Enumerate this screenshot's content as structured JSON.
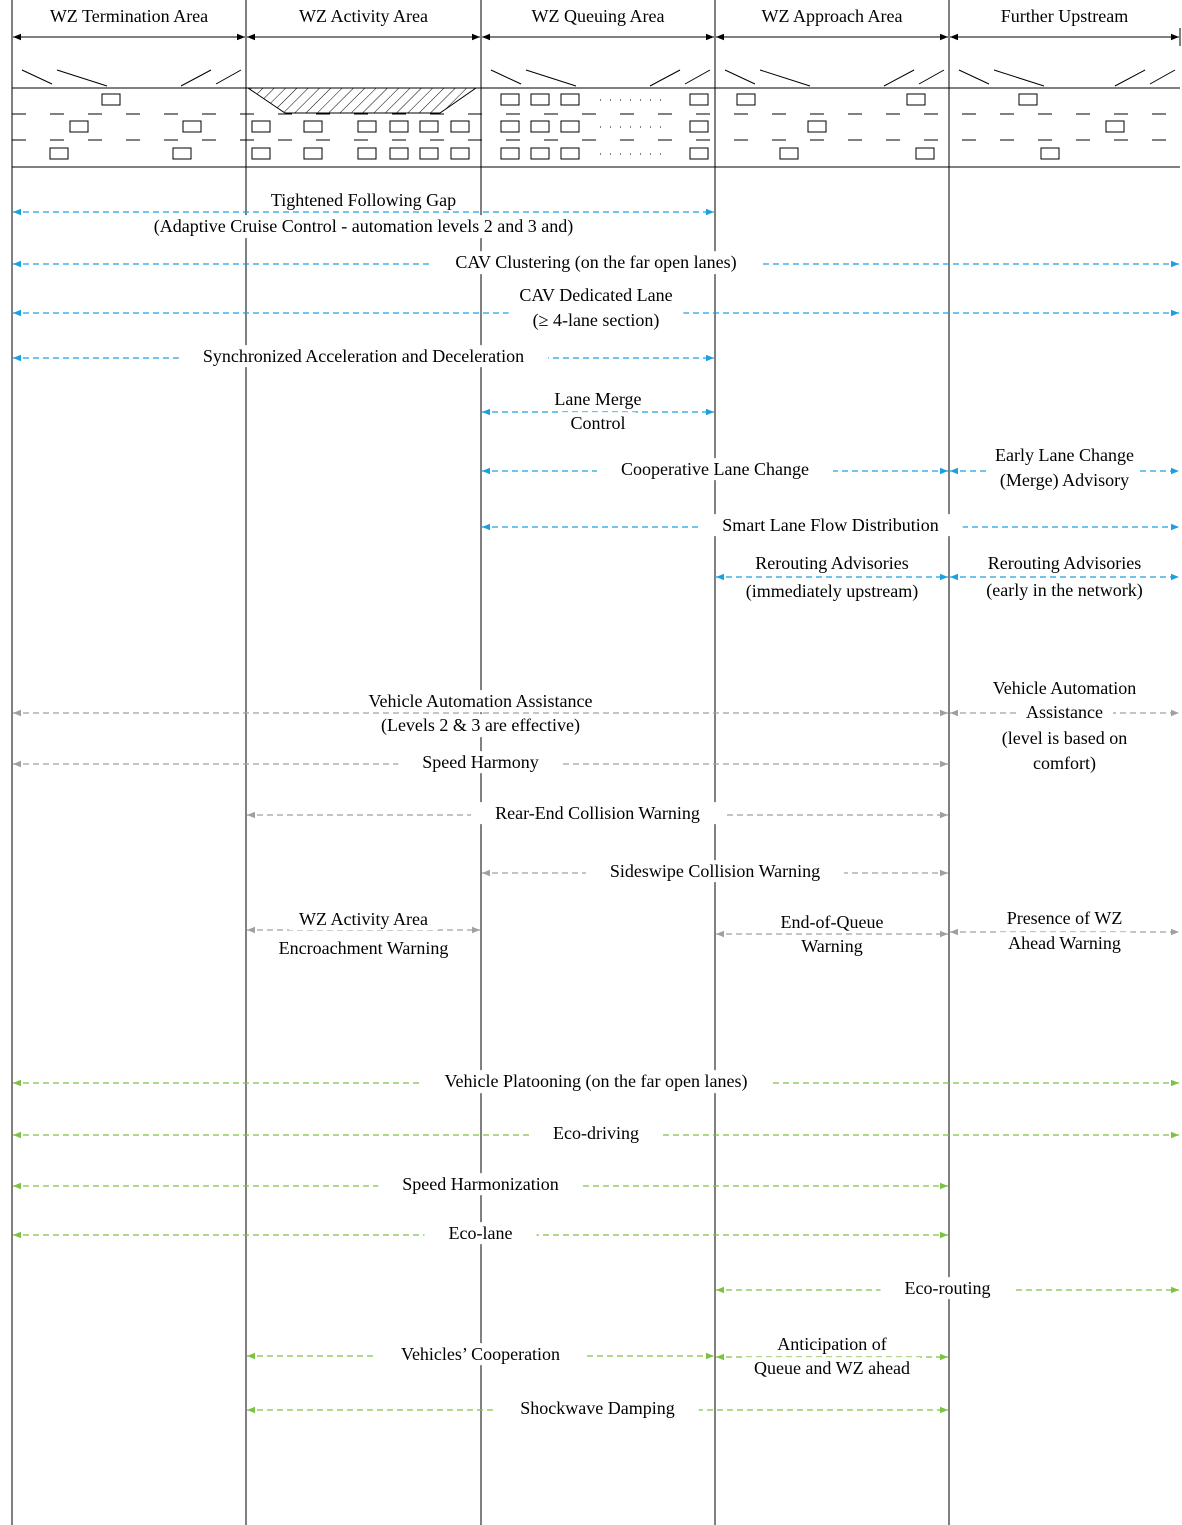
{
  "header_areas": [
    "WZ Termination Area",
    "WZ Activity Area",
    "WZ Queuing Area",
    "WZ Approach Area",
    "Further Upstream"
  ],
  "groups": [
    {
      "color": "#1ba1e2",
      "items": [
        {
          "lines": [
            "Tightened Following Gap",
            "(Adaptive Cruise Control - automation levels 2 and 3 and)"
          ]
        },
        {
          "lines": [
            "CAV Clustering (on the far open lanes)"
          ]
        },
        {
          "lines": [
            "CAV Dedicated Lane",
            "(≥ 4-lane section)"
          ]
        },
        {
          "lines": [
            "Synchronized Acceleration and Deceleration"
          ]
        },
        {
          "lines": [
            "Lane Merge",
            "Control"
          ]
        },
        {
          "lines": [
            "Cooperative Lane Change"
          ]
        },
        {
          "lines": [
            "Early Lane Change",
            "(Merge) Advisory"
          ]
        },
        {
          "lines": [
            "Smart Lane Flow Distribution"
          ]
        },
        {
          "lines": [
            "Rerouting Advisories",
            "(immediately upstream)"
          ]
        },
        {
          "lines": [
            "Rerouting Advisories",
            "(early in the network)"
          ]
        }
      ]
    },
    {
      "color": "#a0a0a0",
      "items": [
        {
          "lines": [
            "Vehicle Automation Assistance",
            "(Levels 2 & 3 are effective)"
          ]
        },
        {
          "lines": [
            "Vehicle Automation",
            "Assistance",
            "(level is based on",
            "comfort)"
          ]
        },
        {
          "lines": [
            "Speed Harmony"
          ]
        },
        {
          "lines": [
            "Rear-End Collision Warning"
          ]
        },
        {
          "lines": [
            "Sideswipe Collision Warning"
          ]
        },
        {
          "lines": [
            "WZ Activity Area",
            "Encroachment Warning"
          ]
        },
        {
          "lines": [
            "End-of-Queue",
            "Warning"
          ]
        },
        {
          "lines": [
            "Presence of WZ",
            "Ahead Warning"
          ]
        }
      ]
    },
    {
      "color": "#7dc242",
      "items": [
        {
          "lines": [
            "Vehicle Platooning (on the far open lanes)"
          ]
        },
        {
          "lines": [
            "Eco-driving"
          ]
        },
        {
          "lines": [
            "Speed Harmonization"
          ]
        },
        {
          "lines": [
            "Eco-lane"
          ]
        },
        {
          "lines": [
            "Eco-routing"
          ]
        },
        {
          "lines": [
            "Vehicles’ Cooperation"
          ]
        },
        {
          "lines": [
            "Anticipation of",
            "Queue and WZ ahead"
          ]
        },
        {
          "lines": [
            "Shockwave Damping"
          ]
        }
      ]
    }
  ]
}
